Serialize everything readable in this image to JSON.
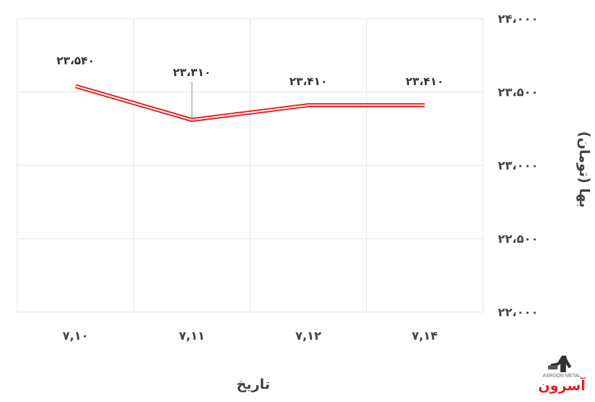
{
  "chart_data": {
    "type": "line",
    "categories": [
      "۷,۱۰",
      "۷,۱۱",
      "۷,۱۲",
      "۷,۱۴"
    ],
    "series": [
      {
        "values": [
          23540,
          23310,
          23410,
          23410
        ],
        "color": "#e31e24"
      }
    ],
    "data_labels": [
      "۲۳،۵۴۰",
      "۲۳،۳۱۰",
      "۲۳،۴۱۰",
      "۲۳،۴۱۰"
    ],
    "xlabel": "تاریخ",
    "ylabel": "بها (تومان)",
    "ylim": [
      22000,
      24000
    ],
    "yticks": [
      22000,
      22500,
      23000,
      23500,
      24000
    ],
    "ytick_labels": [
      "۲۲،۰۰۰",
      "۲۲،۵۰۰",
      "۲۳،۰۰۰",
      "۲۳،۵۰۰",
      "۲۴،۰۰۰"
    ],
    "y_axis_position": "right",
    "grid": true,
    "line_style": "double"
  },
  "logo": {
    "text": "آسرون",
    "subtext": "ASROON METAL",
    "color": "#e31e24"
  }
}
